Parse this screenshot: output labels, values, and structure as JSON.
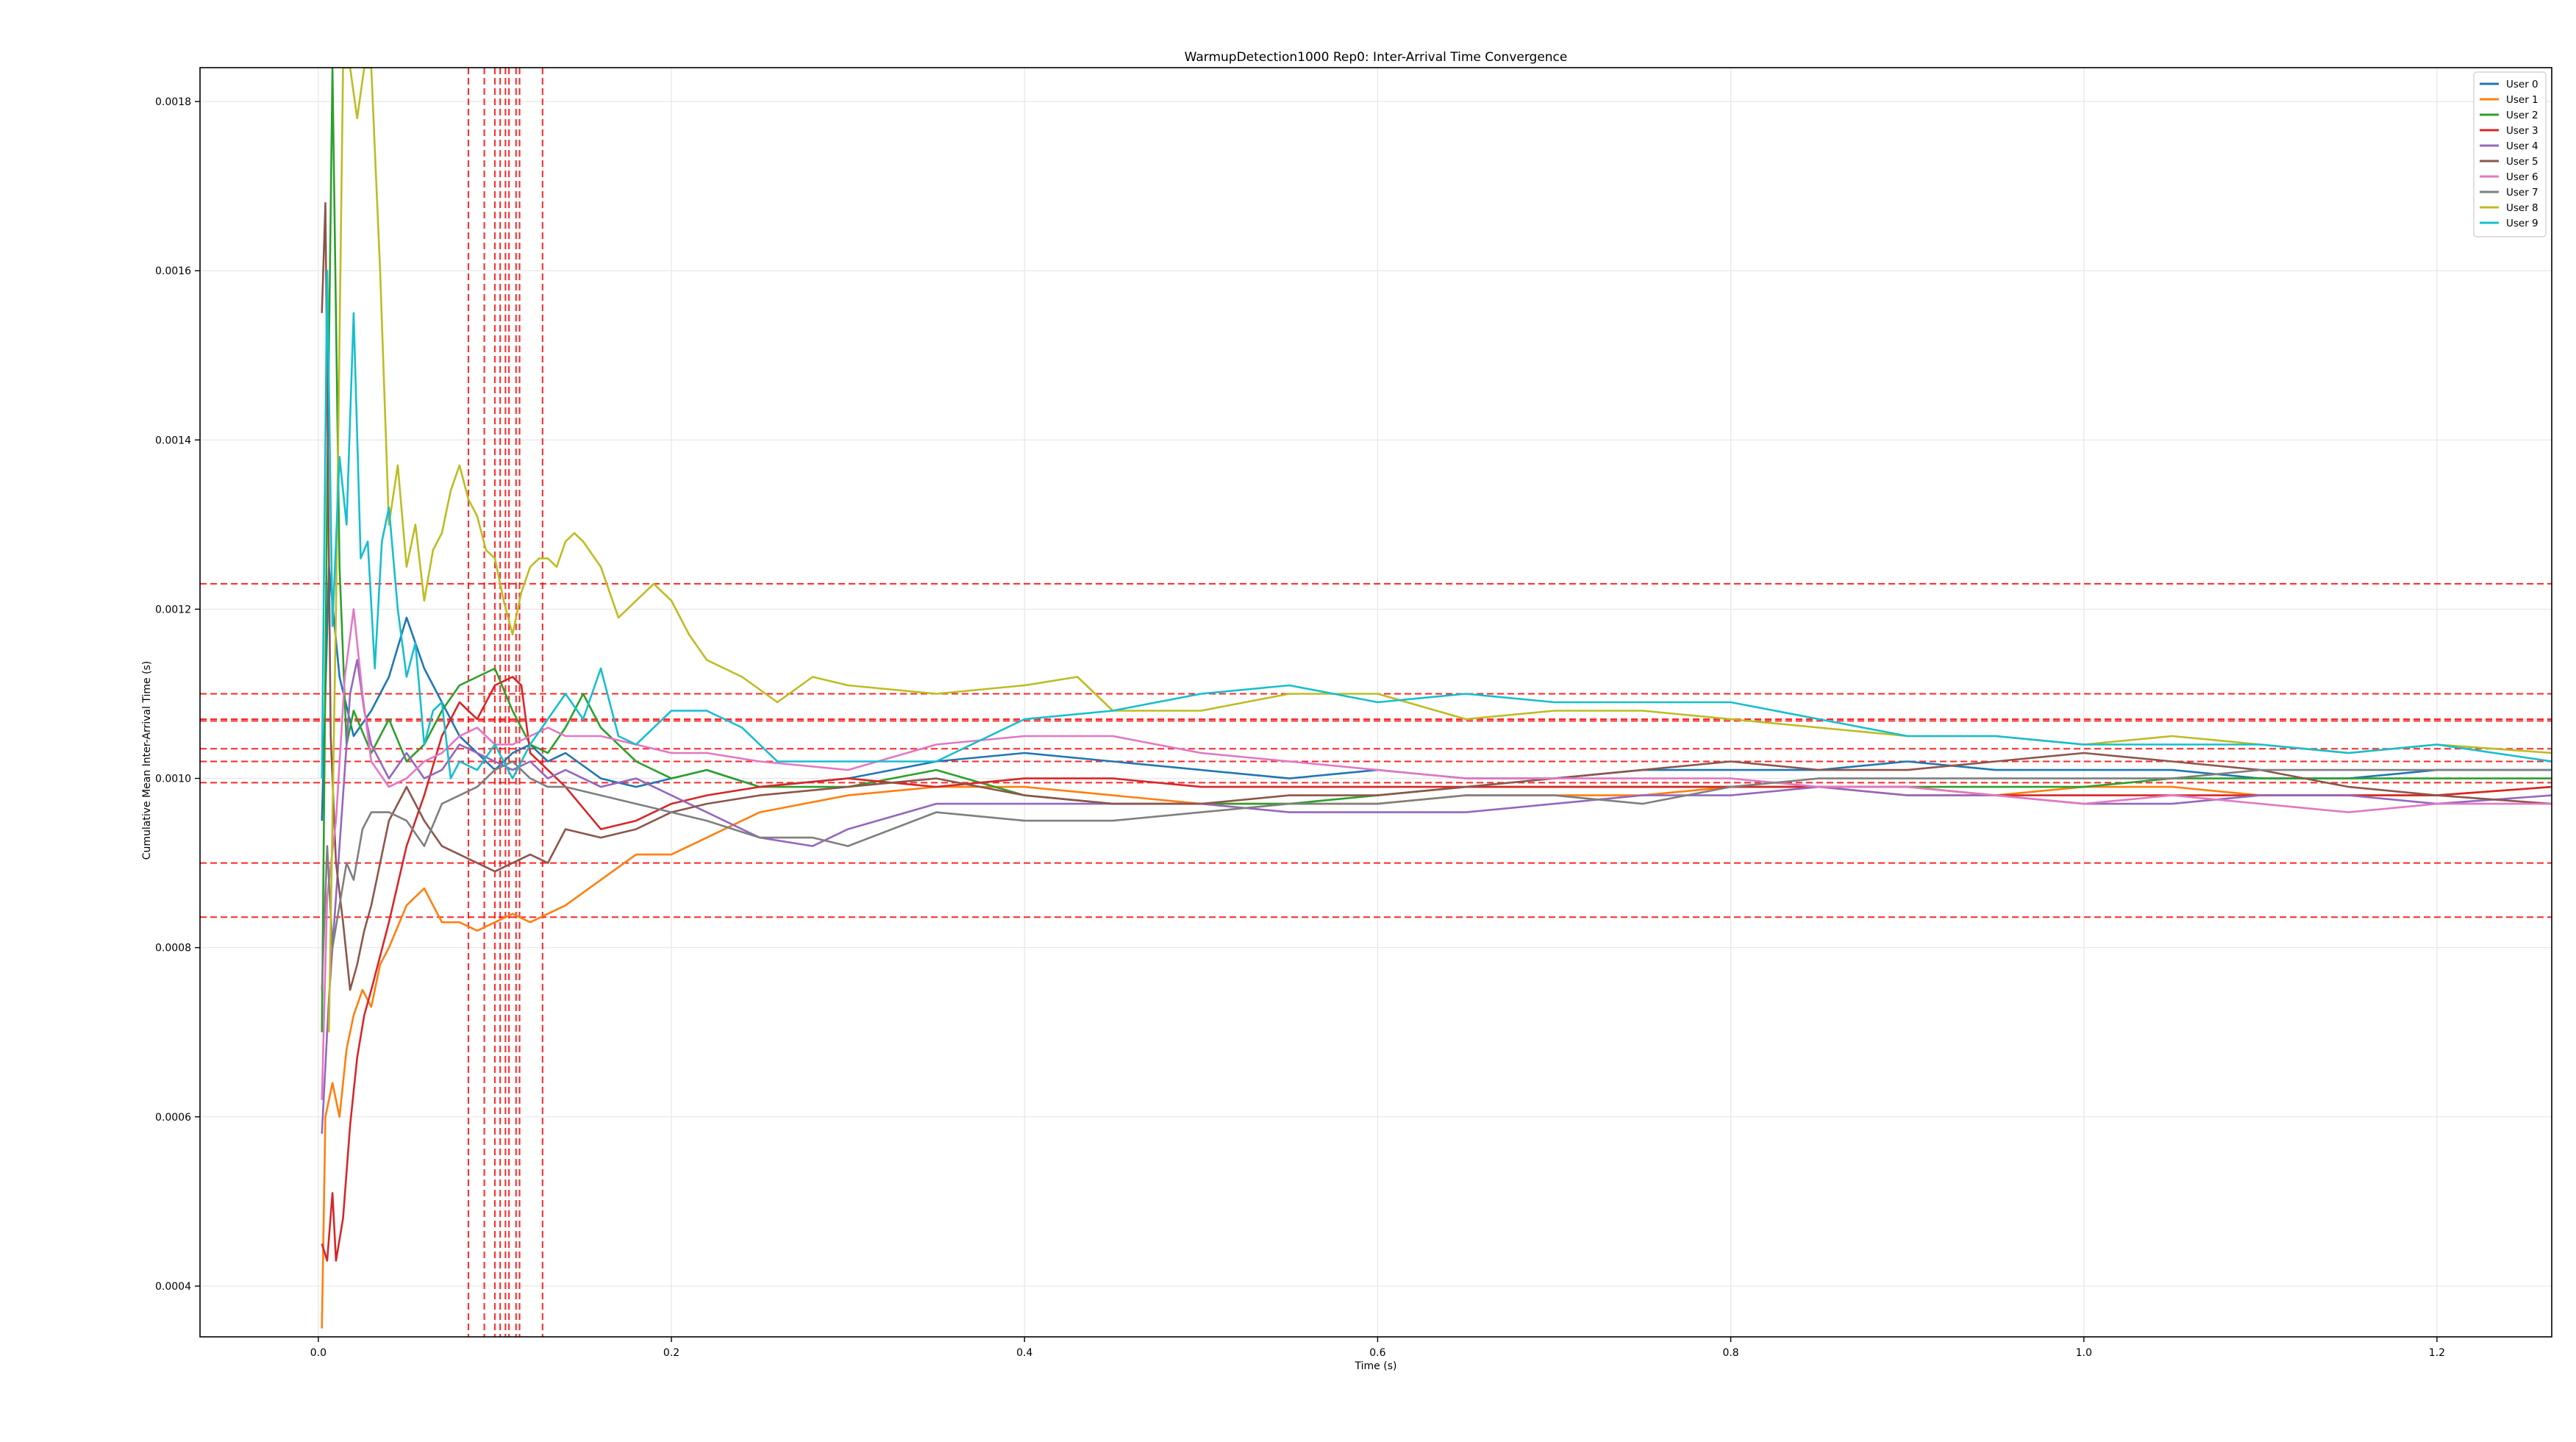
{
  "chart_data": {
    "type": "line",
    "title": "WarmupDetection1000 Rep0: Inter-Arrival Time Convergence",
    "xlabel": "Time (s)",
    "ylabel": "Cumulative Mean Inter-Arrival Time (s)",
    "xlim": [
      -0.067,
      1.265
    ],
    "ylim": [
      0.00034,
      0.00184
    ],
    "xticks": [
      0.0,
      0.2,
      0.4,
      0.6,
      0.8,
      1.0,
      1.2
    ],
    "xtick_labels": [
      "0.0",
      "0.2",
      "0.4",
      "0.6",
      "0.8",
      "1.0",
      "1.2"
    ],
    "yticks": [
      0.0004,
      0.0006,
      0.0008,
      0.001,
      0.0012,
      0.0014,
      0.0016,
      0.0018
    ],
    "ytick_labels": [
      "0.0004",
      "0.0006",
      "0.0008",
      "0.0010",
      "0.0012",
      "0.0014",
      "0.0016",
      "0.0018"
    ],
    "grid": true,
    "legend_position": "top-right",
    "series": [
      {
        "name": "User 0",
        "color": "#1f77b4",
        "x": [
          0.002,
          0.006,
          0.012,
          0.02,
          0.03,
          0.04,
          0.05,
          0.06,
          0.07,
          0.08,
          0.09,
          0.1,
          0.11,
          0.12,
          0.13,
          0.14,
          0.16,
          0.18,
          0.2,
          0.22,
          0.25,
          0.3,
          0.35,
          0.4,
          0.45,
          0.5,
          0.55,
          0.6,
          0.65,
          0.7,
          0.75,
          0.8,
          0.85,
          0.9,
          0.95,
          1.0,
          1.05,
          1.1,
          1.15,
          1.2,
          1.265
        ],
        "y": [
          0.00095,
          0.00125,
          0.00112,
          0.00105,
          0.00108,
          0.00112,
          0.00119,
          0.00113,
          0.00109,
          0.00105,
          0.00103,
          0.00101,
          0.00103,
          0.00104,
          0.00102,
          0.00103,
          0.001,
          0.00099,
          0.001,
          0.00101,
          0.00099,
          0.001,
          0.00102,
          0.00103,
          0.00102,
          0.00101,
          0.001,
          0.00101,
          0.001,
          0.001,
          0.00101,
          0.00101,
          0.00101,
          0.00102,
          0.00101,
          0.00101,
          0.00101,
          0.001,
          0.001,
          0.00101,
          0.00101
        ]
      },
      {
        "name": "User 1",
        "color": "#ff7f0e",
        "x": [
          0.002,
          0.004,
          0.008,
          0.012,
          0.016,
          0.02,
          0.025,
          0.03,
          0.035,
          0.04,
          0.05,
          0.06,
          0.07,
          0.08,
          0.09,
          0.1,
          0.11,
          0.12,
          0.13,
          0.14,
          0.16,
          0.18,
          0.2,
          0.22,
          0.25,
          0.3,
          0.35,
          0.4,
          0.45,
          0.5,
          0.55,
          0.6,
          0.65,
          0.7,
          0.75,
          0.8,
          0.85,
          0.9,
          0.95,
          1.0,
          1.05,
          1.1,
          1.15,
          1.2,
          1.265
        ],
        "y": [
          0.00035,
          0.0006,
          0.00064,
          0.0006,
          0.00068,
          0.00072,
          0.00075,
          0.00073,
          0.00078,
          0.0008,
          0.00085,
          0.00087,
          0.00083,
          0.00083,
          0.00082,
          0.00083,
          0.00084,
          0.00083,
          0.00084,
          0.00085,
          0.00088,
          0.00091,
          0.00091,
          0.00093,
          0.00096,
          0.00098,
          0.00099,
          0.00099,
          0.00098,
          0.00097,
          0.00097,
          0.00097,
          0.00098,
          0.00098,
          0.00098,
          0.00099,
          0.00099,
          0.00098,
          0.00098,
          0.00099,
          0.00099,
          0.00098,
          0.00098,
          0.00098,
          0.00099
        ]
      },
      {
        "name": "User 2",
        "color": "#2ca02c",
        "x": [
          0.002,
          0.005,
          0.008,
          0.012,
          0.016,
          0.02,
          0.03,
          0.04,
          0.05,
          0.06,
          0.07,
          0.08,
          0.09,
          0.1,
          0.11,
          0.12,
          0.13,
          0.14,
          0.15,
          0.16,
          0.18,
          0.2,
          0.22,
          0.25,
          0.3,
          0.35,
          0.4,
          0.45,
          0.5,
          0.55,
          0.6,
          0.65,
          0.7,
          0.75,
          0.8,
          0.85,
          0.9,
          0.95,
          1.0,
          1.05,
          1.1,
          1.15,
          1.2,
          1.265
        ],
        "y": [
          0.0007,
          0.00134,
          0.00184,
          0.00125,
          0.00104,
          0.00108,
          0.00103,
          0.00107,
          0.00102,
          0.00104,
          0.00108,
          0.00111,
          0.00112,
          0.00113,
          0.00108,
          0.00104,
          0.00103,
          0.00106,
          0.0011,
          0.00106,
          0.00102,
          0.001,
          0.00101,
          0.00099,
          0.00099,
          0.00101,
          0.00098,
          0.00097,
          0.00097,
          0.00097,
          0.00098,
          0.00099,
          0.00099,
          0.00099,
          0.00099,
          0.00099,
          0.00099,
          0.00099,
          0.00099,
          0.001,
          0.001,
          0.001,
          0.001,
          0.001
        ]
      },
      {
        "name": "User 3",
        "color": "#d62728",
        "x": [
          0.002,
          0.005,
          0.008,
          0.01,
          0.014,
          0.018,
          0.022,
          0.026,
          0.03,
          0.035,
          0.04,
          0.05,
          0.06,
          0.07,
          0.08,
          0.09,
          0.1,
          0.11,
          0.115,
          0.12,
          0.14,
          0.16,
          0.18,
          0.2,
          0.22,
          0.25,
          0.3,
          0.35,
          0.4,
          0.45,
          0.5,
          0.55,
          0.6,
          0.65,
          0.7,
          0.75,
          0.8,
          0.85,
          0.9,
          0.95,
          1.0,
          1.05,
          1.1,
          1.15,
          1.2,
          1.265
        ],
        "y": [
          0.00045,
          0.00043,
          0.00051,
          0.00043,
          0.00048,
          0.00059,
          0.00067,
          0.00072,
          0.00075,
          0.00079,
          0.00083,
          0.00092,
          0.00098,
          0.00105,
          0.00109,
          0.00107,
          0.00111,
          0.00112,
          0.00111,
          0.00103,
          0.00099,
          0.00094,
          0.00095,
          0.00097,
          0.00098,
          0.00099,
          0.001,
          0.00099,
          0.001,
          0.001,
          0.00099,
          0.00099,
          0.00099,
          0.00099,
          0.00099,
          0.00099,
          0.00099,
          0.00099,
          0.00099,
          0.00098,
          0.00098,
          0.00098,
          0.00098,
          0.00098,
          0.00098,
          0.00099
        ]
      },
      {
        "name": "User 4",
        "color": "#9467bd",
        "x": [
          0.002,
          0.006,
          0.01,
          0.014,
          0.018,
          0.022,
          0.026,
          0.03,
          0.04,
          0.05,
          0.06,
          0.07,
          0.08,
          0.09,
          0.1,
          0.11,
          0.12,
          0.13,
          0.14,
          0.16,
          0.18,
          0.2,
          0.22,
          0.25,
          0.28,
          0.3,
          0.35,
          0.4,
          0.45,
          0.5,
          0.55,
          0.6,
          0.65,
          0.7,
          0.75,
          0.8,
          0.85,
          0.9,
          0.95,
          1.0,
          1.05,
          1.1,
          1.15,
          1.2,
          1.265
        ],
        "y": [
          0.00058,
          0.00074,
          0.00086,
          0.00098,
          0.0011,
          0.00114,
          0.00108,
          0.00104,
          0.001,
          0.00103,
          0.001,
          0.00101,
          0.00104,
          0.00103,
          0.00102,
          0.00101,
          0.00102,
          0.001,
          0.00101,
          0.00099,
          0.001,
          0.00098,
          0.00096,
          0.00093,
          0.00092,
          0.00094,
          0.00097,
          0.00097,
          0.00097,
          0.00097,
          0.00096,
          0.00096,
          0.00096,
          0.00097,
          0.00098,
          0.00098,
          0.00099,
          0.00098,
          0.00098,
          0.00097,
          0.00097,
          0.00098,
          0.00098,
          0.00097,
          0.00098
        ]
      },
      {
        "name": "User 5",
        "color": "#8c564b",
        "x": [
          0.002,
          0.004,
          0.007,
          0.01,
          0.014,
          0.018,
          0.022,
          0.026,
          0.03,
          0.04,
          0.05,
          0.06,
          0.07,
          0.08,
          0.09,
          0.1,
          0.11,
          0.12,
          0.13,
          0.14,
          0.16,
          0.18,
          0.2,
          0.22,
          0.25,
          0.3,
          0.35,
          0.4,
          0.45,
          0.5,
          0.55,
          0.6,
          0.65,
          0.7,
          0.75,
          0.8,
          0.85,
          0.9,
          0.95,
          1.0,
          1.05,
          1.1,
          1.15,
          1.2,
          1.265
        ],
        "y": [
          0.00155,
          0.00168,
          0.00105,
          0.0009,
          0.00083,
          0.00075,
          0.00078,
          0.00082,
          0.00085,
          0.00095,
          0.00099,
          0.00095,
          0.00092,
          0.00091,
          0.0009,
          0.00089,
          0.0009,
          0.00091,
          0.0009,
          0.00094,
          0.00093,
          0.00094,
          0.00096,
          0.00097,
          0.00098,
          0.00099,
          0.001,
          0.00098,
          0.00097,
          0.00097,
          0.00098,
          0.00098,
          0.00099,
          0.001,
          0.00101,
          0.00102,
          0.00101,
          0.00101,
          0.00102,
          0.00103,
          0.00102,
          0.00101,
          0.00099,
          0.00098,
          0.00097
        ]
      },
      {
        "name": "User 6",
        "color": "#e377c2",
        "x": [
          0.002,
          0.005,
          0.01,
          0.015,
          0.02,
          0.025,
          0.03,
          0.04,
          0.05,
          0.06,
          0.07,
          0.08,
          0.09,
          0.1,
          0.11,
          0.12,
          0.13,
          0.14,
          0.16,
          0.18,
          0.2,
          0.22,
          0.25,
          0.3,
          0.35,
          0.4,
          0.45,
          0.5,
          0.55,
          0.6,
          0.65,
          0.7,
          0.75,
          0.8,
          0.85,
          0.9,
          0.95,
          1.0,
          1.05,
          1.1,
          1.15,
          1.2,
          1.265
        ],
        "y": [
          0.00062,
          0.00086,
          0.00095,
          0.00112,
          0.0012,
          0.0011,
          0.00102,
          0.00099,
          0.001,
          0.00102,
          0.00103,
          0.00105,
          0.00106,
          0.00104,
          0.00104,
          0.00105,
          0.00106,
          0.00105,
          0.00105,
          0.00104,
          0.00103,
          0.00103,
          0.00102,
          0.00101,
          0.00104,
          0.00105,
          0.00105,
          0.00103,
          0.00102,
          0.00101,
          0.001,
          0.001,
          0.001,
          0.001,
          0.00099,
          0.00099,
          0.00098,
          0.00097,
          0.00098,
          0.00097,
          0.00096,
          0.00097,
          0.00097
        ]
      },
      {
        "name": "User 7",
        "color": "#7f7f7f",
        "x": [
          0.002,
          0.005,
          0.008,
          0.012,
          0.016,
          0.02,
          0.025,
          0.03,
          0.04,
          0.05,
          0.06,
          0.07,
          0.08,
          0.09,
          0.1,
          0.11,
          0.12,
          0.13,
          0.14,
          0.16,
          0.18,
          0.2,
          0.22,
          0.25,
          0.28,
          0.3,
          0.35,
          0.4,
          0.45,
          0.5,
          0.55,
          0.6,
          0.65,
          0.7,
          0.75,
          0.8,
          0.85,
          0.9,
          0.95,
          1.0,
          1.05,
          1.1,
          1.15,
          1.2,
          1.265
        ],
        "y": [
          0.00075,
          0.00092,
          0.0008,
          0.00085,
          0.0009,
          0.00088,
          0.00094,
          0.00096,
          0.00096,
          0.00095,
          0.00092,
          0.00097,
          0.00098,
          0.00099,
          0.00101,
          0.00102,
          0.001,
          0.00099,
          0.00099,
          0.00098,
          0.00097,
          0.00096,
          0.00095,
          0.00093,
          0.00093,
          0.00092,
          0.00096,
          0.00095,
          0.00095,
          0.00096,
          0.00097,
          0.00097,
          0.00098,
          0.00098,
          0.00097,
          0.00099,
          0.001,
          0.001,
          0.001,
          0.001,
          0.001,
          0.00101,
          0.00101,
          0.00101,
          0.00101
        ]
      },
      {
        "name": "User 8",
        "color": "#bcbd22",
        "x": [
          0.006,
          0.01,
          0.014,
          0.018,
          0.022,
          0.026,
          0.03,
          0.035,
          0.04,
          0.045,
          0.05,
          0.055,
          0.06,
          0.065,
          0.07,
          0.075,
          0.08,
          0.085,
          0.09,
          0.095,
          0.1,
          0.105,
          0.11,
          0.115,
          0.12,
          0.125,
          0.13,
          0.135,
          0.14,
          0.145,
          0.15,
          0.16,
          0.17,
          0.18,
          0.19,
          0.2,
          0.21,
          0.22,
          0.24,
          0.26,
          0.28,
          0.3,
          0.35,
          0.4,
          0.43,
          0.45,
          0.5,
          0.55,
          0.6,
          0.65,
          0.7,
          0.75,
          0.8,
          0.85,
          0.9,
          0.95,
          1.0,
          1.05,
          1.1,
          1.15,
          1.2,
          1.265
        ],
        "y": [
          0.0007,
          0.0012,
          0.00184,
          0.00184,
          0.00178,
          0.00184,
          0.00184,
          0.0016,
          0.0013,
          0.00137,
          0.00125,
          0.0013,
          0.00121,
          0.00127,
          0.00129,
          0.00134,
          0.00137,
          0.00133,
          0.00131,
          0.00127,
          0.00126,
          0.00121,
          0.00117,
          0.00122,
          0.00125,
          0.00126,
          0.00126,
          0.00125,
          0.00128,
          0.00129,
          0.00128,
          0.00125,
          0.00119,
          0.00121,
          0.00123,
          0.00121,
          0.00117,
          0.00114,
          0.00112,
          0.00109,
          0.00112,
          0.00111,
          0.0011,
          0.00111,
          0.00112,
          0.00108,
          0.00108,
          0.0011,
          0.0011,
          0.00107,
          0.00108,
          0.00108,
          0.00107,
          0.00106,
          0.00105,
          0.00105,
          0.00104,
          0.00105,
          0.00104,
          0.00103,
          0.00104,
          0.00103
        ]
      },
      {
        "name": "User 9",
        "color": "#17becf",
        "x": [
          0.002,
          0.005,
          0.008,
          0.012,
          0.016,
          0.02,
          0.024,
          0.028,
          0.032,
          0.036,
          0.04,
          0.045,
          0.05,
          0.055,
          0.06,
          0.065,
          0.07,
          0.075,
          0.08,
          0.09,
          0.1,
          0.11,
          0.12,
          0.13,
          0.14,
          0.15,
          0.16,
          0.17,
          0.18,
          0.2,
          0.22,
          0.24,
          0.26,
          0.3,
          0.35,
          0.4,
          0.45,
          0.5,
          0.55,
          0.6,
          0.65,
          0.7,
          0.75,
          0.8,
          0.85,
          0.9,
          0.95,
          1.0,
          1.05,
          1.1,
          1.15,
          1.2,
          1.265
        ],
        "y": [
          0.001,
          0.0016,
          0.00118,
          0.00138,
          0.0013,
          0.00155,
          0.00126,
          0.00128,
          0.00113,
          0.00128,
          0.00132,
          0.0012,
          0.00112,
          0.00116,
          0.00104,
          0.00108,
          0.00109,
          0.001,
          0.00102,
          0.00101,
          0.00104,
          0.001,
          0.00104,
          0.00107,
          0.0011,
          0.00107,
          0.00113,
          0.00105,
          0.00104,
          0.00108,
          0.00108,
          0.00106,
          0.00102,
          0.00102,
          0.00102,
          0.00107,
          0.00108,
          0.0011,
          0.00111,
          0.00109,
          0.0011,
          0.00109,
          0.00109,
          0.00109,
          0.00107,
          0.00105,
          0.00105,
          0.00104,
          0.00104,
          0.00104,
          0.00103,
          0.00104,
          0.00102
        ]
      }
    ],
    "vertical_lines": {
      "color": "#ff0000",
      "x": [
        0.085,
        0.094,
        0.1,
        0.103,
        0.106,
        0.108,
        0.112,
        0.114,
        0.127
      ]
    },
    "horizontal_lines": {
      "color": "#ff0000",
      "y": [
        0.00123,
        0.0011,
        0.00107,
        0.001068,
        0.001035,
        0.00102,
        0.000995,
        0.0009,
        0.000836
      ]
    }
  }
}
